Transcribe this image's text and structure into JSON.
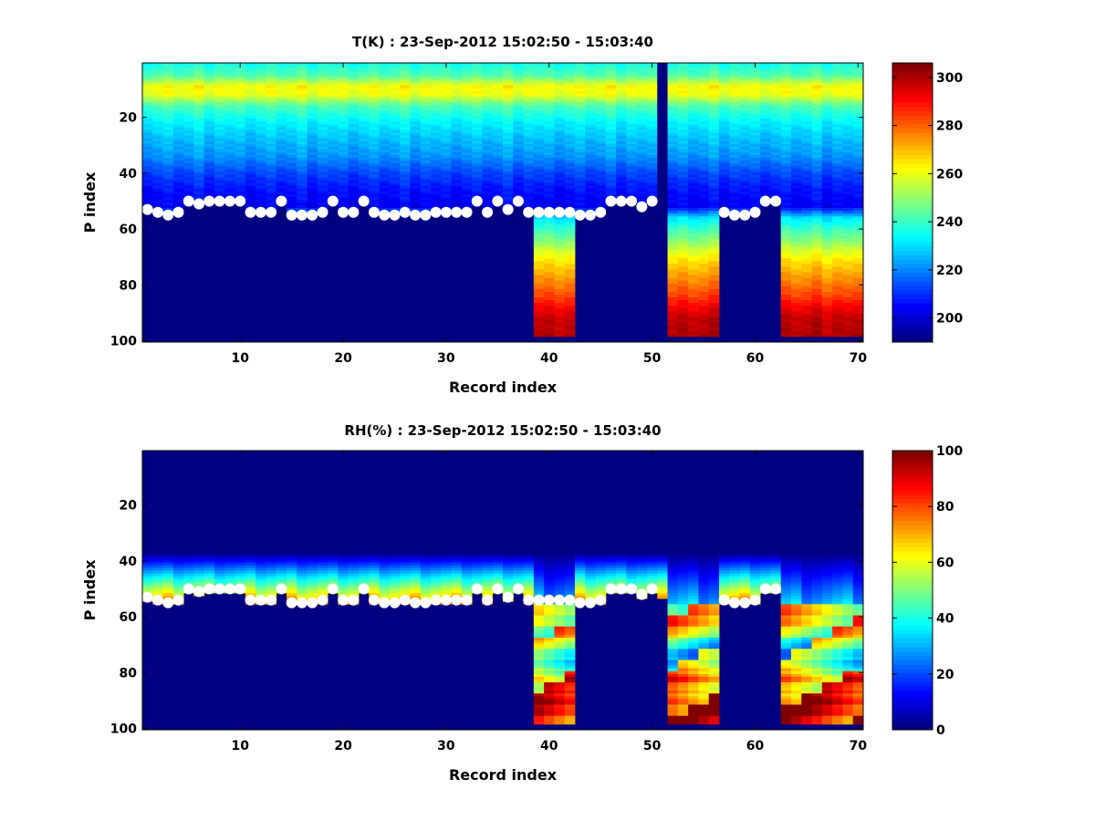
{
  "chart_data": [
    {
      "type": "heatmap",
      "title": "T(K) : 23-Sep-2012 15:02:50 - 15:03:40",
      "xlabel": "Record index",
      "ylabel": "P index",
      "xlim": [
        0.5,
        70.5
      ],
      "ylim": [
        0.5,
        100.5
      ],
      "y_reversed": true,
      "x_ticks": [
        10,
        20,
        30,
        40,
        50,
        60,
        70
      ],
      "y_ticks": [
        20,
        40,
        60,
        80,
        100
      ],
      "colormap": "jet",
      "clim": [
        190,
        306
      ],
      "colorbar_ticks": [
        200,
        220,
        240,
        260,
        280,
        300
      ],
      "fill_value": 190,
      "profile": {
        "p": [
          1,
          5,
          9,
          12,
          16,
          22,
          28,
          34,
          40,
          46,
          52,
          56,
          60,
          64,
          68,
          72,
          76,
          80,
          84,
          88,
          92,
          98
        ],
        "v": [
          236,
          243,
          262,
          260,
          242,
          232,
          226,
          221,
          212,
          206,
          203,
          230,
          240,
          248,
          258,
          266,
          272,
          278,
          284,
          292,
          298,
          300
        ]
      },
      "column_bias": [
        1,
        -2,
        0,
        2,
        -1,
        0,
        3,
        -2,
        1,
        0
      ],
      "deep_segments": [
        [
          39,
          42
        ],
        [
          52,
          56
        ],
        [
          63,
          70
        ]
      ],
      "deep_start": 57,
      "deep_end": 98,
      "dark_columns": [
        51
      ],
      "markers": {
        "x": [
          1,
          2,
          3,
          4,
          5,
          6,
          7,
          8,
          9,
          10,
          11,
          12,
          13,
          14,
          15,
          16,
          17,
          18,
          19,
          20,
          21,
          22,
          23,
          24,
          25,
          26,
          27,
          28,
          29,
          30,
          31,
          32,
          33,
          34,
          35,
          36,
          37,
          38,
          39,
          40,
          41,
          42,
          43,
          44,
          45,
          46,
          47,
          48,
          49,
          50,
          57,
          58,
          59,
          60,
          61,
          62
        ],
        "y": [
          53,
          54,
          55,
          54,
          50,
          51,
          50,
          50,
          50,
          50,
          54,
          54,
          54,
          50,
          55,
          55,
          55,
          54,
          50,
          54,
          54,
          50,
          54,
          55,
          55,
          54,
          55,
          55,
          54,
          54,
          54,
          54,
          50,
          54,
          50,
          53,
          50,
          54,
          54,
          54,
          54,
          54,
          55,
          55,
          54,
          50,
          50,
          50,
          52,
          50,
          54,
          55,
          55,
          54,
          50,
          50
        ]
      }
    },
    {
      "type": "heatmap",
      "title": "RH(%) : 23-Sep-2012 15:02:50 - 15:03:40",
      "xlabel": "Record index",
      "ylabel": "P index",
      "xlim": [
        0.5,
        70.5
      ],
      "ylim": [
        0.5,
        100.5
      ],
      "y_reversed": true,
      "x_ticks": [
        10,
        20,
        30,
        40,
        50,
        60,
        70
      ],
      "y_ticks": [
        20,
        40,
        60,
        80,
        100
      ],
      "colormap": "jet",
      "clim": [
        0,
        100
      ],
      "colorbar_ticks": [
        0,
        20,
        40,
        60,
        80,
        100
      ],
      "fill_value": 0,
      "band": {
        "start": 37,
        "peak": 53,
        "peak_value": 70
      },
      "deep_segments": [
        [
          39,
          42
        ],
        [
          52,
          56
        ],
        [
          63,
          70
        ]
      ],
      "deep_start": 56,
      "deep_end": 98,
      "deep_profile": {
        "p": [
          56,
          62,
          66,
          70,
          74,
          78,
          82,
          86,
          90,
          94,
          98
        ],
        "v": [
          60,
          68,
          62,
          45,
          40,
          50,
          78,
          72,
          88,
          92,
          90
        ]
      },
      "markers": {
        "x": [
          1,
          2,
          3,
          4,
          5,
          6,
          7,
          8,
          9,
          10,
          11,
          12,
          13,
          14,
          15,
          16,
          17,
          18,
          19,
          20,
          21,
          22,
          23,
          24,
          25,
          26,
          27,
          28,
          29,
          30,
          31,
          32,
          33,
          34,
          35,
          36,
          37,
          38,
          39,
          40,
          41,
          42,
          43,
          44,
          45,
          46,
          47,
          48,
          49,
          50,
          57,
          58,
          59,
          60,
          61,
          62
        ],
        "y": [
          53,
          54,
          55,
          54,
          50,
          51,
          50,
          50,
          50,
          50,
          54,
          54,
          54,
          50,
          55,
          55,
          55,
          54,
          50,
          54,
          54,
          50,
          54,
          55,
          55,
          54,
          55,
          55,
          54,
          54,
          54,
          54,
          50,
          54,
          50,
          53,
          50,
          54,
          54,
          54,
          54,
          54,
          55,
          55,
          54,
          50,
          50,
          50,
          52,
          50,
          54,
          55,
          55,
          54,
          50,
          50
        ]
      }
    }
  ]
}
